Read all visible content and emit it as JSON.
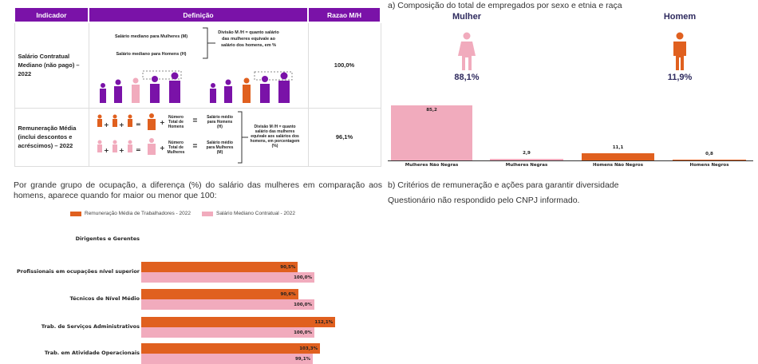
{
  "table": {
    "headers": [
      "Indicador",
      "Definição",
      "Razao M/H"
    ],
    "rows": [
      {
        "indicator": "Salário Contratual Mediano (não pago) – 2022",
        "def_lines": [
          "Salário mediano para Mulheres (M)",
          "Salário mediano para Homens (H)"
        ],
        "def_note": "Divisão M /H = quanto salário das mulheres equivale ao salário dos homens, em %",
        "ratio": "100,0%"
      },
      {
        "indicator": "Remuneração Média (inclui descontos e acréscimos) – 2022",
        "men_total": "Número Total de Homens",
        "men_result": "Salário médio para Homens (H)",
        "women_total": "Número Total de Mulheres",
        "women_result": "Salário médio para Mulheres (M)",
        "def_note": "Divisão M /H = quanto salário das mulheres equivale aos salários dos homens, em porcentagem (%)",
        "ratio": "96,1%"
      }
    ]
  },
  "occupation_text": "Por grande grupo de ocupação, a diferença (%) do salário das mulheres em comparação aos homens, aparece quando for maior ou menor que 100:",
  "composition": {
    "title": "a) Composição do total de empregados por sexo e etnia e raça",
    "women_label": "Mulher",
    "women_pct": "88,1%",
    "men_label": "Homem",
    "men_pct": "11,9%"
  },
  "section_b": {
    "title": "b) Critérios de remuneração e ações para garantir diversidade",
    "text": "Questionário não respondido pelo CNPJ informado."
  },
  "colors": {
    "purple": "#7a12a8",
    "orange": "#e0601f",
    "pink": "#f1abbd",
    "navy": "#2e2a5e"
  },
  "chart_data": [
    {
      "type": "bar",
      "categories": [
        "Mulheres Não Negras",
        "Mulheres Negras",
        "Homens Não Negros",
        "Homens Negros"
      ],
      "values": [
        85.2,
        2.9,
        11.1,
        0.8
      ],
      "labels": [
        "85,2",
        "2,9",
        "11,1",
        "0,8"
      ],
      "colors": [
        "#f1abbd",
        "#f1abbd",
        "#e0601f",
        "#e0601f"
      ]
    },
    {
      "type": "bar",
      "orientation": "horizontal",
      "categories": [
        "Dirigentes e Gerentes",
        "Profissionais em ocupações nível superior",
        "Técnicos de Nível Médio",
        "Trab. de Serviços Administrativos",
        "Trab. em Atividade Operacionais"
      ],
      "series": [
        {
          "name": "Remuneração Média de Trabalhadores - 2022",
          "values": [
            null,
            90.5,
            90.6,
            112.1,
            103.3
          ],
          "labels": [
            "",
            "90,5%",
            "90,6%",
            "112,1%",
            "103,3%"
          ]
        },
        {
          "name": "Salário Mediano Contratual - 2022",
          "values": [
            null,
            100.0,
            100.0,
            100.0,
            99.1
          ],
          "labels": [
            "",
            "100,0%",
            "100,0%",
            "100,0%",
            "99,1%"
          ]
        }
      ],
      "legend": "top"
    }
  ]
}
